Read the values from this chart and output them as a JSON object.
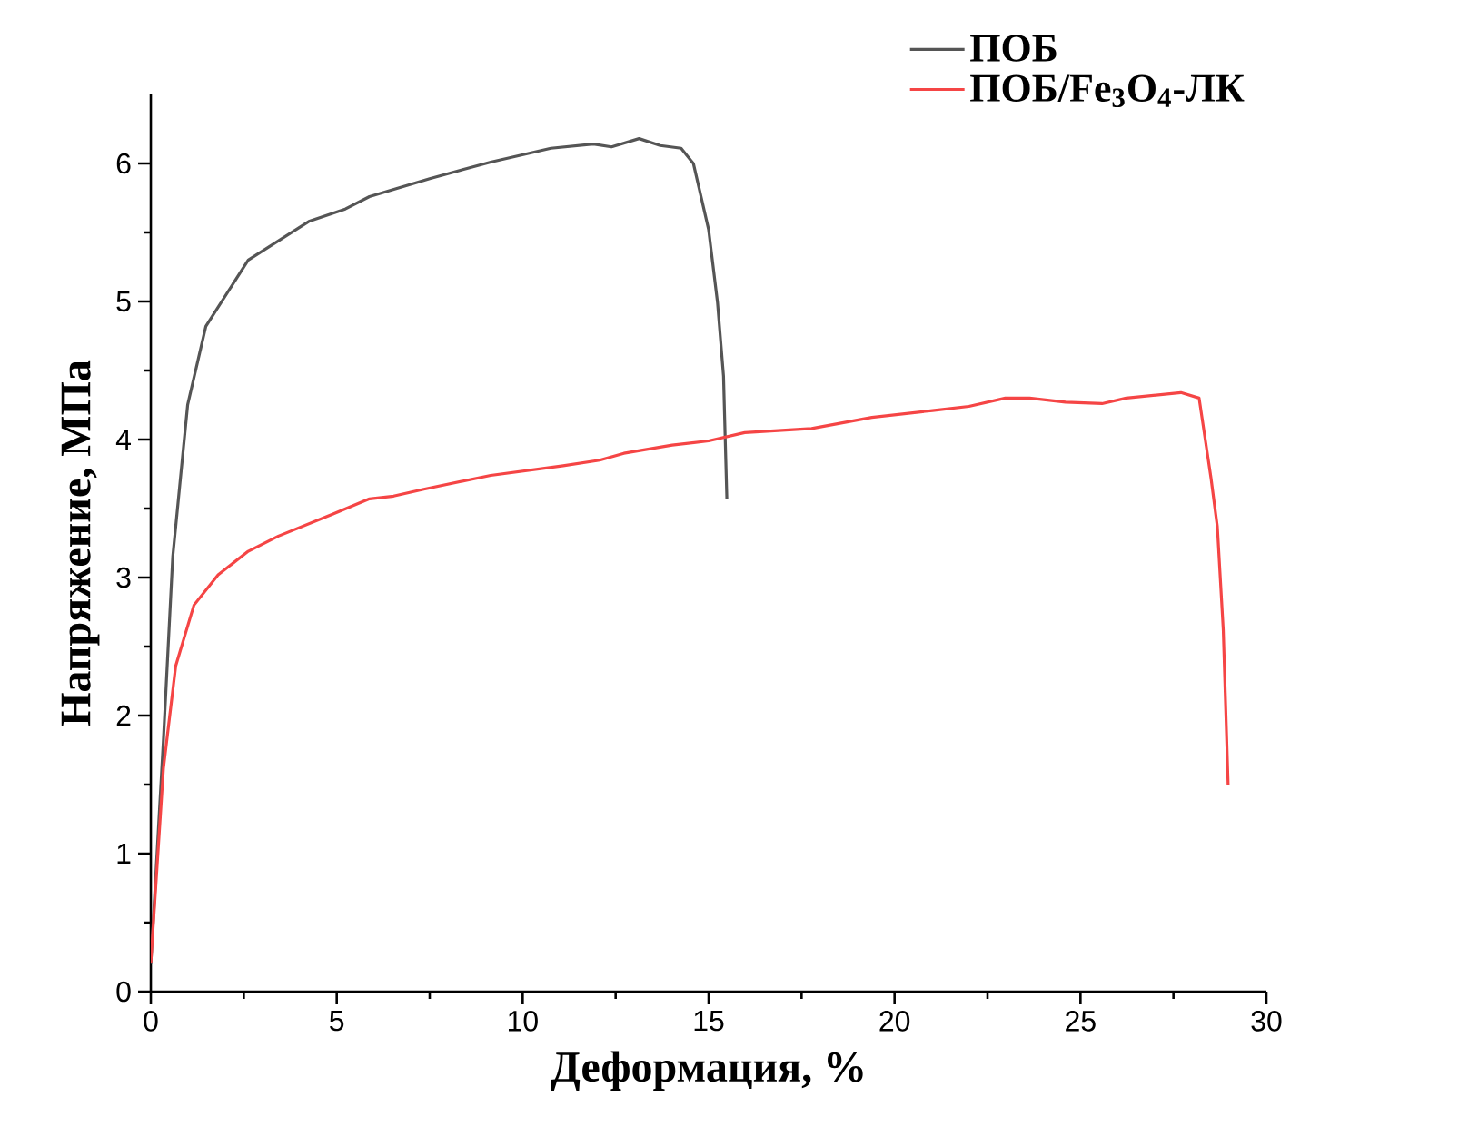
{
  "chart_data": {
    "type": "line",
    "xlabel": "Деформация, %",
    "ylabel": "Напряжение, МПа",
    "xlim": [
      0,
      30
    ],
    "ylim": [
      0,
      6.5
    ],
    "xticks": [
      0,
      5,
      10,
      15,
      20,
      25,
      30
    ],
    "yticks": [
      0,
      1,
      2,
      3,
      4,
      5,
      6
    ],
    "legend": "top right",
    "grid": false,
    "marker": "none",
    "line_style": "solid",
    "series": [
      {
        "name": "ПОБ",
        "color": "#555555",
        "x": [
          0,
          0.34,
          0.59,
          0.99,
          1.48,
          2.62,
          4.25,
          5.23,
          5.88,
          7.5,
          9.14,
          10.76,
          11.9,
          12.39,
          13.13,
          13.7,
          14.26,
          14.59,
          15.0,
          15.24,
          15.4,
          15.49
        ],
        "values": [
          0.2,
          1.83,
          3.15,
          4.25,
          4.82,
          5.3,
          5.58,
          5.67,
          5.76,
          5.89,
          6.01,
          6.11,
          6.14,
          6.12,
          6.18,
          6.13,
          6.11,
          6.0,
          5.52,
          4.99,
          4.46,
          3.57
        ]
      },
      {
        "name": "ПОБ/Fe$_{3}$O$_{4}$-ЛК",
        "color": "#f54545",
        "x": [
          0,
          0.34,
          0.67,
          1.16,
          1.81,
          2.62,
          3.43,
          4.9,
          5.88,
          6.53,
          7.34,
          9.14,
          11.09,
          12.07,
          12.72,
          14.02,
          15.0,
          15.97,
          17.77,
          19.39,
          21.02,
          22.0,
          22.98,
          23.63,
          24.6,
          25.58,
          26.23,
          27.7,
          28.19,
          28.51,
          28.68,
          28.84,
          28.97
        ],
        "values": [
          0.21,
          1.62,
          2.36,
          2.8,
          3.02,
          3.19,
          3.3,
          3.46,
          3.57,
          3.59,
          3.64,
          3.74,
          3.81,
          3.85,
          3.9,
          3.96,
          3.99,
          4.05,
          4.08,
          4.16,
          4.21,
          4.24,
          4.3,
          4.3,
          4.27,
          4.26,
          4.3,
          4.34,
          4.3,
          3.72,
          3.37,
          2.62,
          1.5
        ]
      }
    ]
  }
}
